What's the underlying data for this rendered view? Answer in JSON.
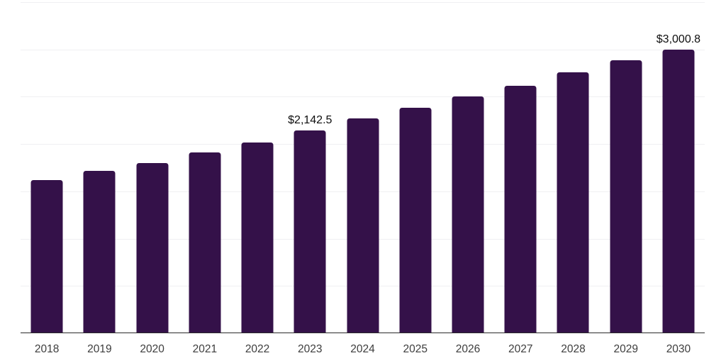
{
  "chart_data": {
    "type": "bar",
    "title": "",
    "xlabel": "",
    "ylabel": "",
    "categories": [
      "2018",
      "2019",
      "2020",
      "2021",
      "2022",
      "2023",
      "2024",
      "2025",
      "2026",
      "2027",
      "2028",
      "2029",
      "2030"
    ],
    "values": [
      1618,
      1713,
      1796,
      1913,
      2020,
      2142.5,
      2270,
      2382,
      2507,
      2617,
      2756,
      2886,
      3000.8
    ],
    "value_labels": [
      "",
      "",
      "",
      "",
      "",
      "$2,142.5",
      "",
      "",
      "",
      "",
      "",
      "",
      "$3,000.8"
    ],
    "ylim": [
      0,
      3500
    ],
    "gridline_step": 500,
    "grid": "horizontal",
    "legend_position": "none",
    "bar_color": "#341149",
    "gridline_color": "#f0f0f2",
    "axis_line_color": "#2b2b2b",
    "tick_label_color": "#3d3d3d",
    "value_label_color": "#0e0e0e",
    "background_color": "#ffffff"
  }
}
